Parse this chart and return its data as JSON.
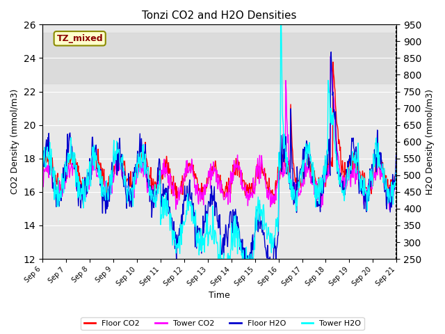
{
  "title": "Tonzi CO2 and H2O Densities",
  "xlabel": "Time",
  "ylabel_left": "CO2 Density (mmol/m3)",
  "ylabel_right": "H2O Density (mmol/m3)",
  "ylim_left": [
    12,
    26
  ],
  "ylim_right": [
    250,
    950
  ],
  "yticks_left": [
    12,
    14,
    16,
    18,
    20,
    22,
    24,
    26
  ],
  "yticks_right": [
    250,
    300,
    350,
    400,
    450,
    500,
    550,
    600,
    650,
    700,
    750,
    800,
    850,
    900,
    950
  ],
  "xtick_labels": [
    "Sep 6",
    "Sep 7",
    "Sep 8",
    "Sep 9",
    "Sep 10",
    "Sep 11",
    "Sep 12",
    "Sep 13",
    "Sep 14",
    "Sep 15",
    "Sep 16",
    "Sep 17",
    "Sep 18",
    "Sep 19",
    "Sep 20",
    "Sep 21"
  ],
  "n_days": 15,
  "points_per_day": 48,
  "colors": {
    "floor_co2": "#FF0000",
    "tower_co2": "#FF00FF",
    "floor_h2o": "#0000CD",
    "tower_h2o": "#00FFFF"
  },
  "gray_band": [
    22.5,
    25.5
  ],
  "gray_band_color": "#D3D3D3",
  "annotation_text": "TZ_mixed",
  "annotation_color": "#8B0000",
  "annotation_bg": "#FFFFCC",
  "background_color": "#E8E8E8",
  "legend_entries": [
    "Floor CO2",
    "Tower CO2",
    "Floor H2O",
    "Tower H2O"
  ]
}
